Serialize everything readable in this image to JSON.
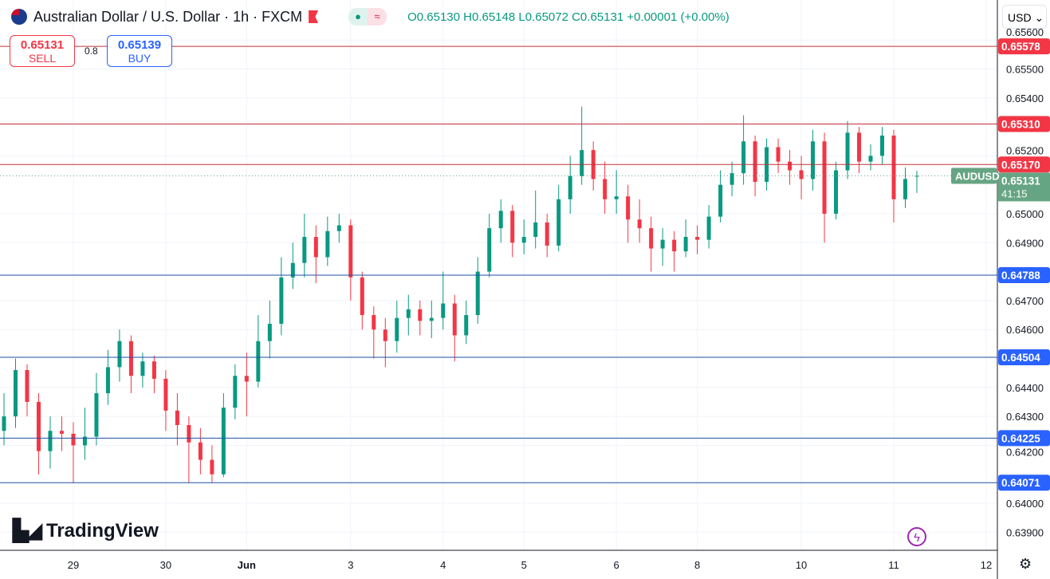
{
  "header": {
    "title": "Australian Dollar / U.S. Dollar · 1h · FXCM",
    "ohlc": "O0.65130 H0.65148 L0.65072 C0.65131 +0.00001 (+0.00%)"
  },
  "trade": {
    "sell_price": "0.65131",
    "sell_label": "SELL",
    "spread": "0.8",
    "buy_price": "0.65139",
    "buy_label": "BUY"
  },
  "currency": "USD ⌄",
  "logo": "TradingView",
  "colors": {
    "up": "#089981",
    "down": "#f23645",
    "resistance": "#c2303a",
    "support": "#1e4fa3",
    "resistance_label": "#f23645",
    "support_label": "#2962ff",
    "last_price": "#66a583"
  },
  "chart_data": {
    "type": "candlestick",
    "symbol": "AUDUSD",
    "timeframe": "1h",
    "ylim": [
      0.6385,
      0.6566
    ],
    "yticks": [
      "0.65600",
      "0.65500",
      "0.65400",
      "0.65200",
      "0.65000",
      "0.64900",
      "0.64700",
      "0.64600",
      "0.64400",
      "0.64300",
      "0.64200",
      "0.64000",
      "0.63900"
    ],
    "xticks": [
      {
        "label": "29",
        "index": 6
      },
      {
        "label": "30",
        "index": 14
      },
      {
        "label": "Jun",
        "index": 21
      },
      {
        "label": "3",
        "index": 30
      },
      {
        "label": "4",
        "index": 38
      },
      {
        "label": "5",
        "index": 45
      },
      {
        "label": "6",
        "index": 53
      },
      {
        "label": "8",
        "index": 60
      },
      {
        "label": "10",
        "index": 69
      },
      {
        "label": "11",
        "index": 77
      },
      {
        "label": "12",
        "index": 85
      }
    ],
    "last_price": {
      "label": "AUDUSD",
      "value": "0.65131",
      "countdown": "41:15"
    },
    "levels": [
      {
        "value": "0.65578",
        "kind": "resistance"
      },
      {
        "value": "0.65310",
        "kind": "resistance"
      },
      {
        "value": "0.65170",
        "kind": "resistance"
      },
      {
        "value": "0.64788",
        "kind": "support"
      },
      {
        "value": "0.64504",
        "kind": "support"
      },
      {
        "value": "0.64225",
        "kind": "support"
      },
      {
        "value": "0.64071",
        "kind": "support"
      }
    ],
    "candles": [
      [
        0.6425,
        0.6438,
        0.642,
        0.643
      ],
      [
        0.643,
        0.645,
        0.6426,
        0.6446
      ],
      [
        0.6446,
        0.6448,
        0.643,
        0.6435
      ],
      [
        0.6435,
        0.6438,
        0.641,
        0.6418
      ],
      [
        0.6418,
        0.643,
        0.6412,
        0.6425
      ],
      [
        0.6425,
        0.643,
        0.6418,
        0.6424
      ],
      [
        0.6424,
        0.6428,
        0.6407,
        0.642
      ],
      [
        0.642,
        0.6433,
        0.6415,
        0.6423
      ],
      [
        0.6423,
        0.6445,
        0.642,
        0.6438
      ],
      [
        0.6438,
        0.6453,
        0.6434,
        0.6447
      ],
      [
        0.6447,
        0.646,
        0.6442,
        0.6456
      ],
      [
        0.6456,
        0.6458,
        0.6438,
        0.6444
      ],
      [
        0.6444,
        0.6452,
        0.644,
        0.6449
      ],
      [
        0.6449,
        0.6451,
        0.6438,
        0.6443
      ],
      [
        0.6443,
        0.6446,
        0.6425,
        0.6432
      ],
      [
        0.6432,
        0.6438,
        0.642,
        0.6427
      ],
      [
        0.6427,
        0.643,
        0.6407,
        0.6421
      ],
      [
        0.6421,
        0.6426,
        0.641,
        0.6415
      ],
      [
        0.6415,
        0.642,
        0.6407,
        0.641
      ],
      [
        0.641,
        0.6438,
        0.6409,
        0.6433
      ],
      [
        0.6433,
        0.6448,
        0.6429,
        0.6444
      ],
      [
        0.6444,
        0.6452,
        0.643,
        0.6442
      ],
      [
        0.6442,
        0.6465,
        0.644,
        0.6456
      ],
      [
        0.6456,
        0.647,
        0.645,
        0.6462
      ],
      [
        0.6462,
        0.6485,
        0.6458,
        0.6478
      ],
      [
        0.6478,
        0.649,
        0.6474,
        0.6483
      ],
      [
        0.6483,
        0.65,
        0.6478,
        0.6492
      ],
      [
        0.6492,
        0.6496,
        0.6476,
        0.6485
      ],
      [
        0.6485,
        0.6499,
        0.6482,
        0.6494
      ],
      [
        0.6494,
        0.65,
        0.649,
        0.6496
      ],
      [
        0.6496,
        0.6498,
        0.647,
        0.6478
      ],
      [
        0.6478,
        0.648,
        0.646,
        0.6465
      ],
      [
        0.6465,
        0.6468,
        0.645,
        0.646
      ],
      [
        0.646,
        0.6464,
        0.6447,
        0.6456
      ],
      [
        0.6456,
        0.647,
        0.6452,
        0.6464
      ],
      [
        0.6464,
        0.6472,
        0.6458,
        0.6467
      ],
      [
        0.6467,
        0.647,
        0.6458,
        0.6463
      ],
      [
        0.6463,
        0.647,
        0.6457,
        0.6464
      ],
      [
        0.6464,
        0.648,
        0.646,
        0.6469
      ],
      [
        0.6469,
        0.6472,
        0.6449,
        0.6458
      ],
      [
        0.6458,
        0.647,
        0.6455,
        0.6465
      ],
      [
        0.6465,
        0.6485,
        0.6462,
        0.648
      ],
      [
        0.648,
        0.65,
        0.6478,
        0.6495
      ],
      [
        0.6495,
        0.6505,
        0.649,
        0.6501
      ],
      [
        0.6501,
        0.6503,
        0.6485,
        0.649
      ],
      [
        0.649,
        0.6498,
        0.6486,
        0.6492
      ],
      [
        0.6492,
        0.6508,
        0.6488,
        0.6497
      ],
      [
        0.6497,
        0.65,
        0.6485,
        0.6489
      ],
      [
        0.6489,
        0.651,
        0.6487,
        0.6505
      ],
      [
        0.6505,
        0.652,
        0.65,
        0.6513
      ],
      [
        0.6513,
        0.6537,
        0.651,
        0.6522
      ],
      [
        0.6522,
        0.6525,
        0.6508,
        0.6512
      ],
      [
        0.6512,
        0.6518,
        0.65,
        0.6505
      ],
      [
        0.6505,
        0.6515,
        0.65,
        0.6506
      ],
      [
        0.6506,
        0.651,
        0.649,
        0.6498
      ],
      [
        0.6498,
        0.6505,
        0.649,
        0.6495
      ],
      [
        0.6495,
        0.6499,
        0.648,
        0.6488
      ],
      [
        0.6488,
        0.6495,
        0.6482,
        0.6491
      ],
      [
        0.6491,
        0.6494,
        0.648,
        0.6487
      ],
      [
        0.6487,
        0.6498,
        0.6485,
        0.6492
      ],
      [
        0.6492,
        0.6496,
        0.6486,
        0.6491
      ],
      [
        0.6491,
        0.6503,
        0.6488,
        0.6499
      ],
      [
        0.6499,
        0.6515,
        0.6497,
        0.651
      ],
      [
        0.651,
        0.6518,
        0.6506,
        0.6514
      ],
      [
        0.6514,
        0.6534,
        0.651,
        0.6525
      ],
      [
        0.6525,
        0.6527,
        0.6506,
        0.6511
      ],
      [
        0.6511,
        0.6526,
        0.6508,
        0.6523
      ],
      [
        0.6523,
        0.6526,
        0.6514,
        0.6518
      ],
      [
        0.6518,
        0.6522,
        0.651,
        0.6515
      ],
      [
        0.6515,
        0.652,
        0.6505,
        0.6512
      ],
      [
        0.6512,
        0.6529,
        0.6508,
        0.6525
      ],
      [
        0.6525,
        0.6528,
        0.649,
        0.65
      ],
      [
        0.65,
        0.6518,
        0.6498,
        0.6515
      ],
      [
        0.6515,
        0.6532,
        0.6512,
        0.6528
      ],
      [
        0.6528,
        0.653,
        0.6514,
        0.6518
      ],
      [
        0.6518,
        0.6524,
        0.6515,
        0.652
      ],
      [
        0.652,
        0.653,
        0.6517,
        0.6527
      ],
      [
        0.6527,
        0.6529,
        0.6497,
        0.6505
      ],
      [
        0.6505,
        0.6516,
        0.6502,
        0.6512
      ],
      [
        0.6513,
        0.65148,
        0.65072,
        0.65131
      ]
    ]
  }
}
